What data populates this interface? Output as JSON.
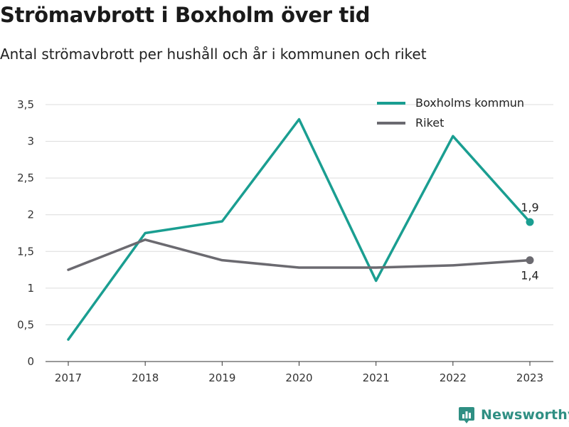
{
  "title": "Strömavbrott i Boxholm över tid",
  "subtitle": "Antal strömavbrott per hushåll och år i kommunen och riket",
  "brand": {
    "name": "Newsworthy",
    "icon": "newsworthy-logo-icon",
    "color": "#2f8f83"
  },
  "chart_data": {
    "type": "line",
    "title": "Strömavbrott i Boxholm över tid",
    "subtitle": "Antal strömavbrott per hushåll och år i kommunen och riket",
    "xlabel": "",
    "ylabel": "",
    "categories": [
      "2017",
      "2018",
      "2019",
      "2020",
      "2021",
      "2022",
      "2023"
    ],
    "ylim": [
      0,
      3.5
    ],
    "yticks": [
      0,
      0.5,
      1,
      1.5,
      2,
      2.5,
      3,
      3.5
    ],
    "ytick_labels": [
      "0",
      "0,5",
      "1",
      "1,5",
      "2",
      "2,5",
      "3",
      "3,5"
    ],
    "grid": true,
    "legend_position": "top-right",
    "series": [
      {
        "name": "Boxholms kommun",
        "color": "#1a9e91",
        "values": [
          0.3,
          1.75,
          1.91,
          3.3,
          1.1,
          3.07,
          1.9
        ],
        "end_label": "1,9"
      },
      {
        "name": "Riket",
        "color": "#6b6a70",
        "values": [
          1.25,
          1.66,
          1.38,
          1.28,
          1.28,
          1.31,
          1.38
        ],
        "end_label": "1,4"
      }
    ]
  }
}
